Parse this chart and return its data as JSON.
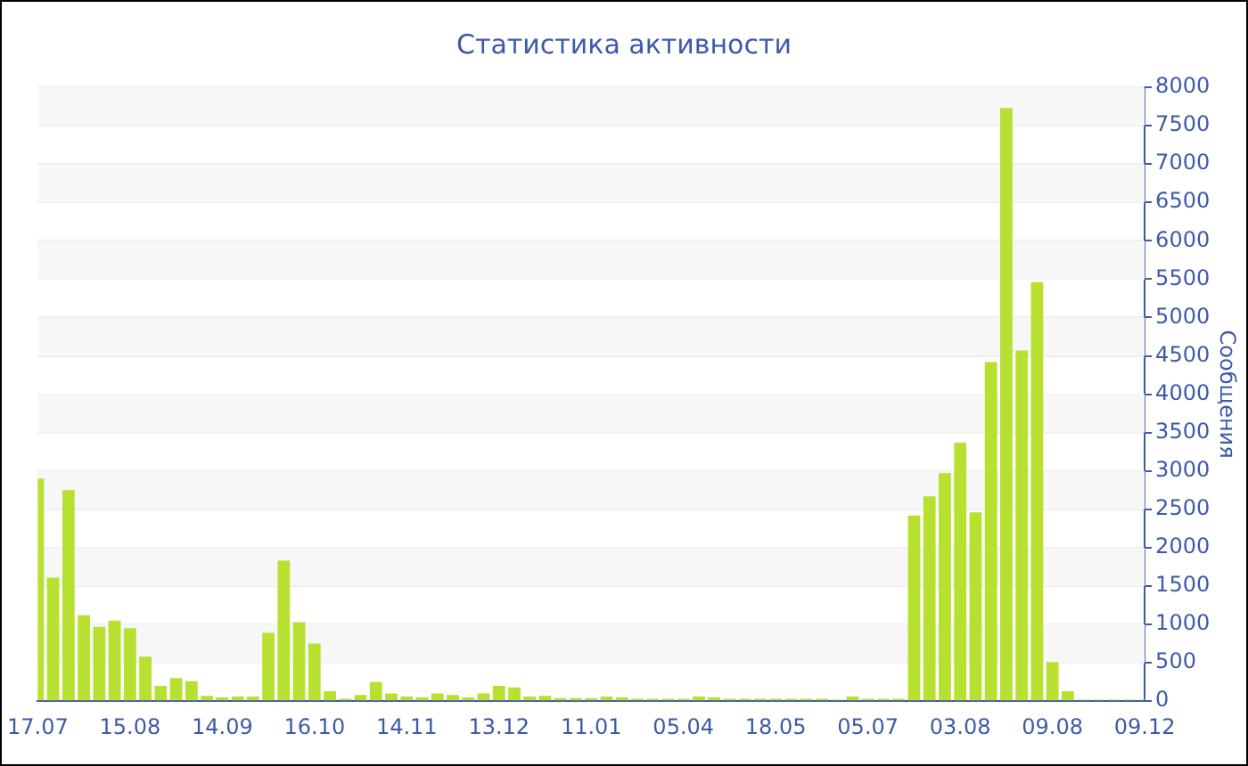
{
  "chart_data": {
    "type": "bar",
    "title": "Статистика активности",
    "ylabel": "Сообщения",
    "categories": [
      "17.07",
      null,
      null,
      null,
      null,
      null,
      "15.08",
      null,
      null,
      null,
      null,
      null,
      "14.09",
      null,
      null,
      null,
      null,
      null,
      "16.10",
      null,
      null,
      null,
      null,
      null,
      "14.11",
      null,
      null,
      null,
      null,
      null,
      "13.12",
      null,
      null,
      null,
      null,
      null,
      "11.01",
      null,
      null,
      null,
      null,
      null,
      "05.04",
      null,
      null,
      null,
      null,
      null,
      "18.05",
      null,
      null,
      null,
      null,
      null,
      "05.07",
      null,
      null,
      null,
      null,
      null,
      "03.08",
      null,
      null,
      null,
      null,
      null,
      "09.08",
      null,
      null,
      null,
      null,
      null,
      "09.12"
    ],
    "values": [
      2900,
      1610,
      2750,
      1120,
      970,
      1050,
      950,
      580,
      200,
      300,
      260,
      70,
      50,
      60,
      60,
      890,
      1830,
      1030,
      750,
      130,
      30,
      80,
      250,
      100,
      60,
      50,
      100,
      80,
      50,
      100,
      200,
      180,
      60,
      70,
      40,
      40,
      40,
      60,
      50,
      30,
      30,
      30,
      30,
      60,
      50,
      30,
      30,
      30,
      30,
      30,
      30,
      30,
      20,
      60,
      30,
      30,
      30,
      2420,
      2670,
      2970,
      3370,
      2460,
      4420,
      7730,
      4570,
      5460,
      510,
      130,
      20,
      20,
      20,
      20,
      20
    ],
    "color": "#b8e030",
    "ylim": [
      0,
      8000
    ],
    "yticks": [
      0,
      500,
      1000,
      1500,
      2000,
      2500,
      3000,
      3500,
      4000,
      4500,
      5000,
      5500,
      6000,
      6500,
      7000,
      7500,
      8000
    ],
    "grid": "y"
  }
}
